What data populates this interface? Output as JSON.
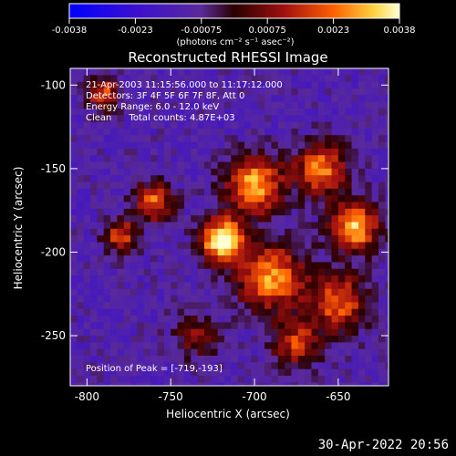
{
  "chart_data": {
    "type": "heatmap",
    "title": "Reconstructed RHESSI Image",
    "xlabel": "Heliocentric X (arcsec)",
    "ylabel": "Heliocentric Y (arcsec)",
    "xlim": [
      -810,
      -620
    ],
    "ylim": [
      -280,
      -90
    ],
    "x_ticks": [
      -800,
      -750,
      -700,
      -650
    ],
    "y_ticks": [
      -100,
      -150,
      -200,
      -250
    ],
    "colorbar": {
      "min": -0.0038,
      "max": 0.0038,
      "ticks": [
        "-0.0038",
        "-0.0023",
        "-0.00075",
        "0.00075",
        "0.0023",
        "0.0038"
      ],
      "unit_label": "(photons cm⁻² s⁻¹ asec⁻²)"
    },
    "annotations": [
      "21-Apr-2003 11:15:56.000 to 11:17:12.000",
      "Detectors: 3F 4F 5F 6F 7F 8F, Att 0",
      "Energy Range: 6.0 - 12.0 keV",
      "Clean      Total counts: 4.87E+03"
    ],
    "peak_label": "Position of Peak = [-719,-193]",
    "peak": [
      -719,
      -193
    ],
    "sources": [
      {
        "x": -719,
        "y": -193,
        "amp": 1.0,
        "s": 9
      },
      {
        "x": -700,
        "y": -160,
        "amp": 0.75,
        "s": 12
      },
      {
        "x": -690,
        "y": -215,
        "amp": 0.7,
        "s": 14
      },
      {
        "x": -660,
        "y": -150,
        "amp": 0.65,
        "s": 11
      },
      {
        "x": -640,
        "y": -185,
        "amp": 0.8,
        "s": 10
      },
      {
        "x": -650,
        "y": -230,
        "amp": 0.6,
        "s": 12
      },
      {
        "x": -760,
        "y": -170,
        "amp": 0.6,
        "s": 8
      },
      {
        "x": -790,
        "y": -105,
        "amp": 0.55,
        "s": 7
      },
      {
        "x": -780,
        "y": -190,
        "amp": 0.55,
        "s": 7
      },
      {
        "x": -675,
        "y": -255,
        "amp": 0.5,
        "s": 10
      },
      {
        "x": -735,
        "y": -250,
        "amp": 0.35,
        "s": 9
      }
    ]
  },
  "footer": {
    "timestamp": "30-Apr-2022 20:56"
  }
}
